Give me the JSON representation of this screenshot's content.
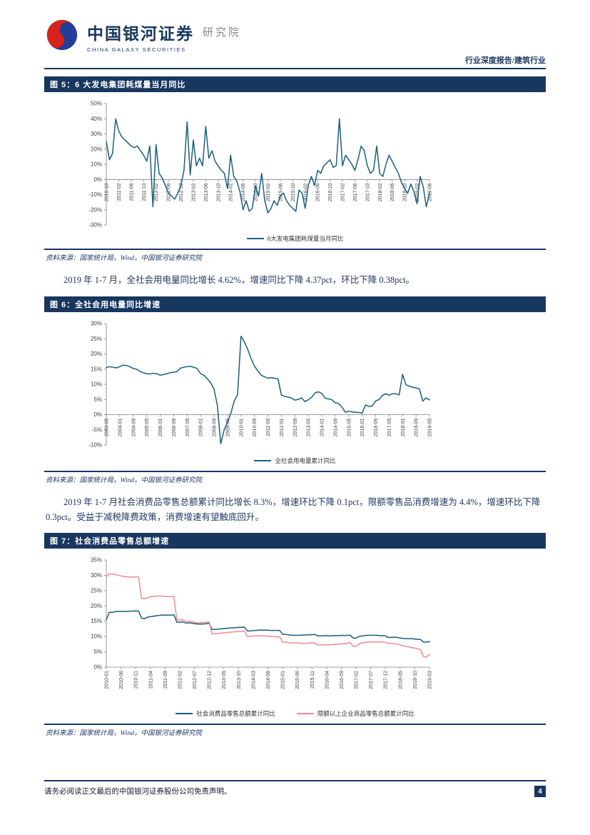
{
  "header": {
    "logo_cn": "中国银河证券",
    "logo_en": "CHINA GALAXY SECURITIES",
    "logo_suffix": "研究院",
    "report_type": "行业深度报告/建筑行业"
  },
  "figures": [
    {
      "title": "图 5：6 大发电集团耗煤量当月同比",
      "source": "资料来源：国家统计局，Wind，中国银河证券研究院"
    },
    {
      "title": "图 6：全社会用电量同比增速",
      "source": "资料来源：国家统计局，Wind，中国银河证券研究院"
    },
    {
      "title": "图 7：社会消费品零售总额增速",
      "source": "资料来源：国家统计局，Wind，中国银河证券研究院"
    }
  ],
  "paragraphs": [
    "2019 年 1-7 月，全社会用电量同比增长 4.62%，增速同比下降 4.37pct，环比下降 0.38pct。",
    "2019 年 1-7 月社会消费品零售总额累计同比增长 8.3%，增速环比下降 0.1pct，限额零售品消费增速为 4.4%，增速环比下降 0.3pct。受益于减税降费政策，消费增速有望触底回升。"
  ],
  "footer": {
    "disclaimer": "请务必阅读正文最后的中国银河证券股份公司免责声明。",
    "page_number": "4"
  },
  "colors": {
    "navy": "#17375E",
    "text_navy": "#1F3864",
    "line_blue": "#1B5E7D",
    "line_pink": "#EF8B8B",
    "logo_red": "#D6231C",
    "logo_blue": "#233E99"
  },
  "chart_data": [
    {
      "type": "line",
      "title": "6大发电集团耗煤量当月同比",
      "xlabel": "",
      "ylabel": "",
      "ylim": [
        -30,
        50
      ],
      "ystep": 10,
      "tick_every": 4,
      "x_tick_labels": [
        "2010-10",
        "2011-02",
        "2011-06",
        "2011-10",
        "2012-02",
        "2012-06",
        "2012-10",
        "2013-02",
        "2013-06",
        "2013-10",
        "2014-02",
        "2014-06",
        "2014-10",
        "2015-02",
        "2015-06",
        "2015-10",
        "2016-02",
        "2016-06",
        "2016-10",
        "2017-02",
        "2017-06",
        "2017-10",
        "2018-02",
        "2018-06",
        "2018-10",
        "2019-02",
        "2019-06"
      ],
      "series": [
        {
          "name": "6大发电集团耗煤量当月同比",
          "color": "#1B5E7D",
          "values": [
            25,
            13,
            17,
            40,
            32,
            28,
            26,
            24,
            22,
            21,
            22,
            19,
            16,
            12,
            22,
            -18,
            23,
            4,
            1,
            -4,
            -9,
            -11,
            -13,
            -9,
            -4,
            6,
            38,
            3,
            26,
            9,
            14,
            9,
            35,
            14,
            19,
            12,
            9,
            6,
            4,
            -6,
            16,
            2,
            -1,
            -8,
            -20,
            -14,
            -21,
            -19,
            -4,
            -11,
            4,
            -14,
            -22,
            -19,
            -14,
            -17,
            -11,
            -9,
            -14,
            -17,
            -19,
            -21,
            -7,
            -9,
            -19,
            -4,
            2,
            -4,
            6,
            4,
            9,
            11,
            13,
            8,
            9,
            40,
            9,
            16,
            13,
            10,
            6,
            13,
            22,
            19,
            9,
            4,
            6,
            22,
            4,
            2,
            10,
            16,
            12,
            8,
            4,
            -2,
            -6,
            -9,
            -3,
            -8,
            -16,
            2,
            -5,
            -18,
            -9
          ]
        }
      ]
    },
    {
      "type": "line",
      "title": "全社会用电量累计同比",
      "xlabel": "",
      "ylabel": "",
      "ylim": [
        -10,
        30
      ],
      "ystep": 5,
      "tick_every": 4,
      "x_tick_labels": [
        "2003-05",
        "2004-01",
        "2004-09",
        "2005-05",
        "2006-01",
        "2006-09",
        "2007-05",
        "2008-01",
        "2008-09",
        "2009-05",
        "2010-01",
        "2010-09",
        "2011-05",
        "2012-01",
        "2012-09",
        "2013-05",
        "2014-01",
        "2014-09",
        "2015-05",
        "2016-01",
        "2016-09",
        "2017-05",
        "2018-01",
        "2018-09",
        "2019-05"
      ],
      "series": [
        {
          "name": "全社会用电量累计同比",
          "color": "#1B5E7D",
          "values": [
            15.5,
            15.8,
            15.6,
            15.4,
            15.8,
            16.3,
            16.2,
            15.8,
            15.2,
            15.0,
            14.2,
            13.8,
            13.5,
            13.4,
            13.6,
            13.5,
            13.0,
            13.2,
            13.5,
            13.8,
            14.0,
            14.2,
            15.3,
            15.6,
            15.8,
            15.9,
            15.6,
            15.2,
            13.5,
            13.0,
            11.8,
            10.5,
            8.5,
            3.0,
            -9.6,
            -5.0,
            -2.5,
            0.5,
            4.5,
            6.5,
            25.8,
            24.0,
            21.5,
            18.5,
            16.0,
            14.5,
            13.0,
            12.5,
            12.0,
            12.2,
            12.0,
            11.8,
            6.5,
            6.0,
            5.8,
            5.5,
            4.8,
            5.0,
            5.5,
            4.3,
            4.9,
            5.7,
            7.2,
            7.5,
            7.0,
            5.4,
            5.2,
            4.9,
            3.9,
            3.7,
            2.5,
            0.8,
            1.1,
            0.9,
            0.8,
            0.7,
            0.5,
            3.2,
            2.7,
            2.9,
            4.5,
            5.0,
            6.3,
            6.9,
            6.4,
            6.9,
            6.9,
            6.5,
            13.3,
            9.8,
            9.4,
            9.0,
            8.8,
            8.5,
            4.5,
            5.5,
            4.9
          ]
        }
      ]
    },
    {
      "type": "line",
      "title": "社会消费品零售总额增速",
      "xlabel": "",
      "ylabel": "",
      "ylim": [
        0,
        35
      ],
      "ystep": 5,
      "tick_every": 5,
      "x_tick_labels": [
        "2010-01",
        "2010-06",
        "2010-11",
        "2011-04",
        "2011-09",
        "2012-02",
        "2012-07",
        "2012-12",
        "2013-05",
        "2013-10",
        "2014-03",
        "2014-08",
        "2015-01",
        "2015-06",
        "2015-11",
        "2016-04",
        "2016-09",
        "2017-02",
        "2017-07",
        "2017-12",
        "2018-05",
        "2018-10",
        "2019-03"
      ],
      "series": [
        {
          "name": "社会消费品零售总额累计同比",
          "color": "#1B5E7D",
          "values": [
            15.5,
            17.9,
            17.9,
            18.1,
            18.2,
            18.2,
            18.2,
            18.2,
            18.3,
            18.3,
            18.4,
            18.3,
            16.0,
            15.8,
            16.3,
            16.5,
            16.6,
            16.8,
            16.9,
            17.0,
            17.0,
            17.0,
            17.0,
            17.1,
            14.7,
            14.7,
            14.8,
            14.4,
            14.5,
            14.4,
            14.2,
            14.1,
            14.1,
            14.1,
            14.2,
            14.3,
            12.3,
            12.3,
            12.4,
            12.5,
            12.6,
            12.7,
            12.8,
            12.8,
            12.9,
            13.0,
            13.0,
            13.1,
            11.8,
            11.8,
            12.0,
            12.0,
            12.1,
            12.1,
            12.1,
            12.1,
            12.0,
            12.0,
            12.0,
            12.0,
            10.7,
            10.7,
            10.6,
            10.4,
            10.4,
            10.4,
            10.4,
            10.5,
            10.5,
            10.6,
            10.6,
            10.7,
            10.2,
            10.2,
            10.3,
            10.3,
            10.2,
            10.3,
            10.3,
            10.3,
            10.4,
            10.3,
            10.4,
            10.4,
            9.5,
            9.5,
            10.0,
            10.2,
            10.3,
            10.4,
            10.4,
            10.4,
            10.4,
            10.3,
            10.3,
            10.2,
            9.7,
            9.7,
            9.8,
            9.7,
            9.5,
            9.4,
            9.3,
            9.3,
            9.3,
            9.2,
            9.1,
            9.0,
            8.2,
            8.2,
            8.3
          ]
        },
        {
          "name": "限额以上企业商品零售总额累计同比",
          "color": "#EF8B8B",
          "values": [
            29.5,
            30.5,
            30.4,
            30.3,
            30.0,
            29.8,
            29.6,
            29.5,
            29.5,
            29.4,
            29.5,
            29.5,
            22.5,
            22.3,
            22.6,
            23.0,
            23.1,
            23.2,
            23.3,
            23.2,
            23.1,
            23.0,
            23.0,
            23.1,
            15.5,
            15.4,
            15.5,
            15.0,
            15.0,
            14.9,
            14.6,
            14.5,
            14.5,
            14.6,
            14.7,
            14.8,
            10.9,
            10.9,
            11.0,
            11.1,
            11.2,
            11.3,
            11.4,
            11.5,
            11.6,
            11.6,
            11.7,
            11.8,
            10.0,
            10.0,
            10.2,
            10.2,
            10.3,
            10.2,
            10.2,
            10.1,
            10.0,
            10.0,
            9.9,
            9.9,
            8.2,
            8.2,
            8.0,
            7.9,
            7.9,
            7.9,
            7.8,
            7.8,
            7.8,
            7.9,
            7.9,
            7.9,
            7.2,
            7.2,
            7.3,
            7.3,
            7.3,
            7.4,
            7.4,
            7.5,
            7.6,
            7.6,
            7.8,
            8.1,
            6.8,
            6.8,
            7.6,
            7.9,
            8.0,
            8.2,
            8.2,
            8.2,
            8.3,
            8.2,
            8.2,
            8.1,
            7.8,
            7.8,
            7.7,
            7.5,
            7.3,
            7.0,
            6.8,
            6.6,
            6.4,
            6.2,
            6.0,
            5.7,
            3.4,
            3.3,
            4.2
          ]
        }
      ]
    }
  ]
}
